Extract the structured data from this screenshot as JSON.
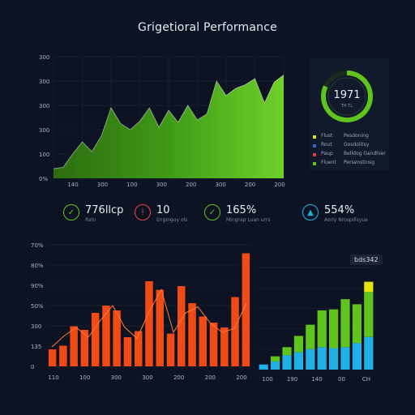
{
  "header": {
    "title": "Grigetioral Performance"
  },
  "colors": {
    "background": "#0d1322",
    "green": "#5fc41e",
    "red": "#f04a17",
    "yellow": "#e8e20e",
    "cyan": "#1fb0e8",
    "grid": "#1e2638"
  },
  "chart_data": [
    {
      "type": "area",
      "y_ticks": [
        "300",
        "300",
        "300",
        "300",
        "100",
        "0%"
      ],
      "x_ticks": [
        "140",
        "300",
        "100",
        "300",
        "200",
        "300",
        "200",
        "200"
      ],
      "ylim": [
        0,
        100
      ],
      "values": [
        8,
        9,
        20,
        30,
        22,
        35,
        58,
        45,
        40,
        47,
        58,
        42,
        56,
        46,
        60,
        48,
        53,
        80,
        68,
        74,
        77,
        82,
        62,
        79,
        85
      ]
    },
    {
      "type": "donut",
      "value_label": "1971",
      "sub_label": "TH TL",
      "fraction": 0.82,
      "legend": [
        {
          "name": "Flust",
          "value": "Pesdoning",
          "color": "#e8e20e"
        },
        {
          "name": "Rout",
          "value": "Gosdolitsy",
          "color": "#3c64c8"
        },
        {
          "name": "Paup",
          "value": "Belldog Gandhier",
          "color": "#e83a3a"
        },
        {
          "name": "Fluent",
          "value": "Persenstinsg",
          "color": "#5fc41e"
        }
      ]
    },
    {
      "type": "kpi",
      "items": [
        {
          "icon": "check-icon",
          "value": "776llcp",
          "sub": "Ralo",
          "color": "#5fc41e"
        },
        {
          "icon": "alert-icon",
          "value": "10",
          "sub": "Enginguy ols",
          "color": "#e8414d"
        },
        {
          "icon": "check-icon",
          "value": "165%",
          "sub": "Mingrap Luan urrs",
          "color": "#5fc41e"
        },
        {
          "icon": "chart-icon",
          "value": "554%",
          "sub": "Aorly Nrospillsyue",
          "color": "#1fb0e8"
        }
      ]
    },
    {
      "type": "bar",
      "y_ticks": [
        "70%",
        "80%",
        "90%",
        "50%",
        "300",
        "135",
        "0"
      ],
      "x_ticks": [
        "110",
        "100",
        "300",
        "300",
        "200",
        "200",
        "200"
      ],
      "ylim": [
        0,
        100
      ],
      "values": [
        14,
        17,
        33,
        30,
        44,
        50,
        46,
        24,
        29,
        70,
        63,
        27,
        66,
        52,
        41,
        36,
        32,
        57,
        93
      ],
      "line": [
        16,
        25,
        32,
        24,
        38,
        50,
        32,
        23,
        45,
        63,
        28,
        44,
        49,
        36,
        28,
        31,
        52
      ]
    },
    {
      "type": "stacked-bar",
      "tag": "bds342",
      "x_ticks": [
        "100",
        "190",
        "140",
        "00",
        "CH"
      ],
      "series": [
        {
          "name": "",
          "color": "#1fb0e8",
          "values": [
            5,
            8,
            14,
            17,
            20,
            22,
            21,
            22,
            26,
            32
          ]
        },
        {
          "name": "",
          "color": "#5fc41e",
          "values": [
            0,
            5,
            8,
            16,
            24,
            36,
            38,
            47,
            38,
            44
          ]
        },
        {
          "name": "",
          "color": "#e8e20e",
          "values": [
            0,
            0,
            0,
            0,
            0,
            0,
            0,
            0,
            0,
            10
          ]
        }
      ],
      "ylim": [
        0,
        100
      ]
    }
  ]
}
